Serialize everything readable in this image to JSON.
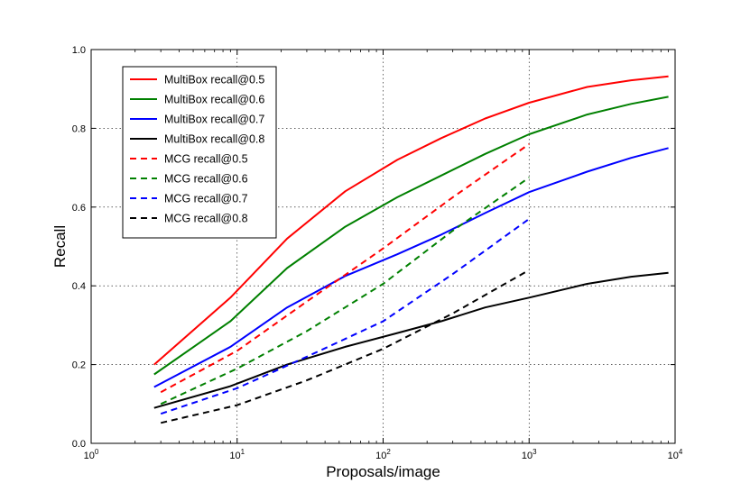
{
  "chart_data": {
    "type": "line",
    "title": "",
    "xlabel": "Proposals/image",
    "ylabel": "Recall",
    "xscale": "log",
    "xlim": [
      1,
      10000
    ],
    "ylim": [
      0.0,
      1.0
    ],
    "grid": true,
    "legend_position": "top-left",
    "x_ticks": [
      {
        "base": "10",
        "exp": "0"
      },
      {
        "base": "10",
        "exp": "1"
      },
      {
        "base": "10",
        "exp": "2"
      },
      {
        "base": "10",
        "exp": "3"
      },
      {
        "base": "10",
        "exp": "4"
      }
    ],
    "y_ticks": [
      "0.0",
      "0.2",
      "0.4",
      "0.6",
      "0.8",
      "1.0"
    ],
    "series": [
      {
        "name": "MultiBox recall@0.5",
        "color": "#ff0000",
        "dash": "solid",
        "x": [
          2.7,
          9,
          22,
          55,
          125,
          250,
          500,
          1000,
          2500,
          5000,
          9000
        ],
        "y": [
          0.2,
          0.37,
          0.52,
          0.64,
          0.72,
          0.775,
          0.825,
          0.865,
          0.905,
          0.922,
          0.932
        ]
      },
      {
        "name": "MultiBox recall@0.6",
        "color": "#008000",
        "dash": "solid",
        "x": [
          2.7,
          9,
          22,
          55,
          125,
          250,
          500,
          1000,
          2500,
          5000,
          9000
        ],
        "y": [
          0.175,
          0.31,
          0.445,
          0.55,
          0.625,
          0.68,
          0.735,
          0.785,
          0.835,
          0.862,
          0.88
        ]
      },
      {
        "name": "MultiBox recall@0.7",
        "color": "#0000ff",
        "dash": "solid",
        "x": [
          2.7,
          9,
          22,
          55,
          125,
          250,
          500,
          1000,
          2500,
          5000,
          9000
        ],
        "y": [
          0.143,
          0.245,
          0.345,
          0.425,
          0.48,
          0.53,
          0.585,
          0.638,
          0.69,
          0.725,
          0.75
        ]
      },
      {
        "name": "MultiBox recall@0.8",
        "color": "#000000",
        "dash": "solid",
        "x": [
          2.7,
          9,
          22,
          55,
          125,
          250,
          500,
          1000,
          2500,
          5000,
          9000
        ],
        "y": [
          0.09,
          0.145,
          0.2,
          0.245,
          0.28,
          0.31,
          0.345,
          0.37,
          0.405,
          0.423,
          0.433
        ]
      },
      {
        "name": "MCG recall@0.5",
        "color": "#ff0000",
        "dash": "dashed",
        "x": [
          3,
          10,
          30,
          100,
          300,
          1000
        ],
        "y": [
          0.13,
          0.235,
          0.36,
          0.495,
          0.625,
          0.76
        ]
      },
      {
        "name": "MCG recall@0.6",
        "color": "#008000",
        "dash": "dashed",
        "x": [
          3,
          10,
          30,
          100,
          300,
          1000
        ],
        "y": [
          0.1,
          0.19,
          0.285,
          0.405,
          0.54,
          0.675
        ]
      },
      {
        "name": "MCG recall@0.7",
        "color": "#0000ff",
        "dash": "dashed",
        "x": [
          3,
          10,
          30,
          100,
          300,
          1000
        ],
        "y": [
          0.075,
          0.14,
          0.22,
          0.31,
          0.43,
          0.57
        ]
      },
      {
        "name": "MCG recall@0.8",
        "color": "#000000",
        "dash": "dashed",
        "x": [
          3,
          10,
          30,
          100,
          300,
          1000
        ],
        "y": [
          0.052,
          0.097,
          0.16,
          0.24,
          0.33,
          0.44
        ]
      }
    ]
  }
}
